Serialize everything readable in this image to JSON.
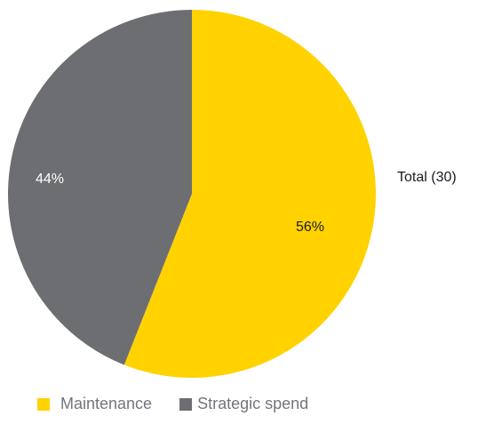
{
  "chart_data": {
    "type": "pie",
    "title": "",
    "annotation": "Total (30)",
    "slices": [
      {
        "name": "Maintenance",
        "value": 56,
        "label": "56%",
        "color": "#ffd200",
        "label_color": "#1a1a24"
      },
      {
        "name": "Strategic spend",
        "value": 44,
        "label": "44%",
        "color": "#6d6e71",
        "label_color": "#ffffff"
      }
    ],
    "legend": {
      "placement": "bottom",
      "items": [
        {
          "label": "Maintenance",
          "color": "#ffd200"
        },
        {
          "label": "Strategic spend",
          "color": "#6d6e71"
        }
      ]
    }
  }
}
